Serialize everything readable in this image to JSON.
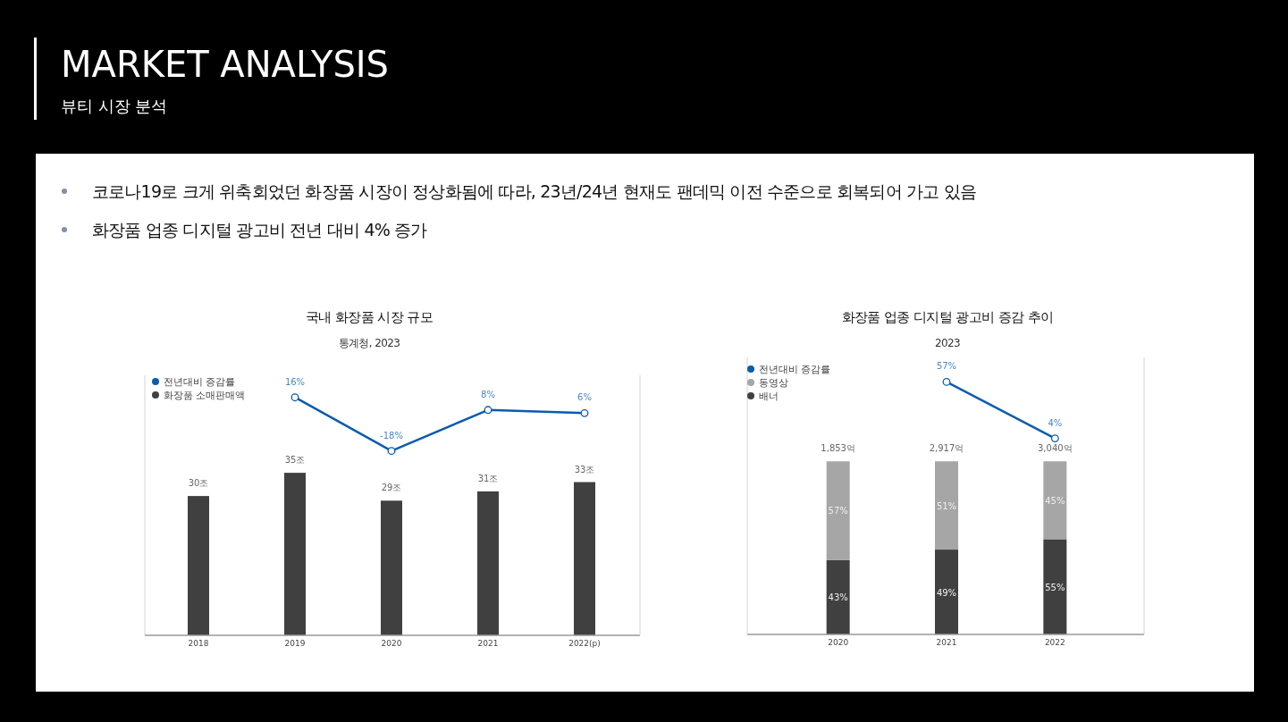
{
  "chart_data": [
    {
      "type": "other",
      "title": "MARKET ANALYSIS",
      "subtitle": "뷰티 시장 분석",
      "annotations": [
        "코로나19로 크게 위축회었던 화장품 시장이 정상화됨에 따라, 23년/24년 현재도 팬데믹 이전 수준으로 회복되어 가고 있음",
        "화장품 업종 디지털 광고비 전년 대비 4% 증가"
      ]
    },
    {
      "type": "bar",
      "title": "국내 화장품 시장 규모",
      "subtitle": "통계청, 2023",
      "categories": [
        "2018",
        "2019",
        "2020",
        "2021",
        "2022(p)"
      ],
      "ylim": [
        0,
        56
      ],
      "y2lim": [
        -135,
        30
      ],
      "tick_labels": "x",
      "legend": "top left",
      "marker": "circle",
      "series": [
        {
          "name": "화장품 소매판매액",
          "type": "bar",
          "color": "#404040",
          "values": [
            30,
            35,
            29,
            31,
            33
          ],
          "value_labels": [
            "30조",
            "35조",
            "29조",
            "31조",
            "33조"
          ]
        },
        {
          "name": "전년대비 증감률",
          "type": "line",
          "axis": "y2",
          "color": "#0b5cad",
          "values": [
            null,
            16,
            -18,
            8,
            6
          ],
          "value_labels": [
            null,
            "16%",
            "-18%",
            "8%",
            "6%"
          ]
        }
      ]
    },
    {
      "type": "bar",
      "title": "화장품 업종 디지털 광고비 증감 추이",
      "subtitle": "2023",
      "categories": [
        "2020",
        "2021",
        "2022"
      ],
      "stacked": true,
      "ylim": [
        0,
        160
      ],
      "y2lim": [
        -180,
        80
      ],
      "tick_labels": "x",
      "legend": "top left",
      "marker": "circle",
      "annotations": [
        "1,853억",
        "2,917억",
        "3,040억"
      ],
      "series": [
        {
          "name": "배너",
          "type": "bar",
          "color": "#404040",
          "values": [
            43,
            49,
            55
          ],
          "value_labels": [
            "43%",
            "49%",
            "55%"
          ]
        },
        {
          "name": "동영상",
          "type": "bar",
          "color": "#a6a6a6",
          "values": [
            57,
            51,
            45
          ],
          "value_labels": [
            "57%",
            "51%",
            "45%"
          ]
        },
        {
          "name": "전년대비 증감률",
          "type": "line",
          "axis": "y2",
          "color": "#0b5cad",
          "values": [
            null,
            57,
            4
          ],
          "value_labels": [
            null,
            "57%",
            "4%"
          ]
        }
      ]
    }
  ]
}
